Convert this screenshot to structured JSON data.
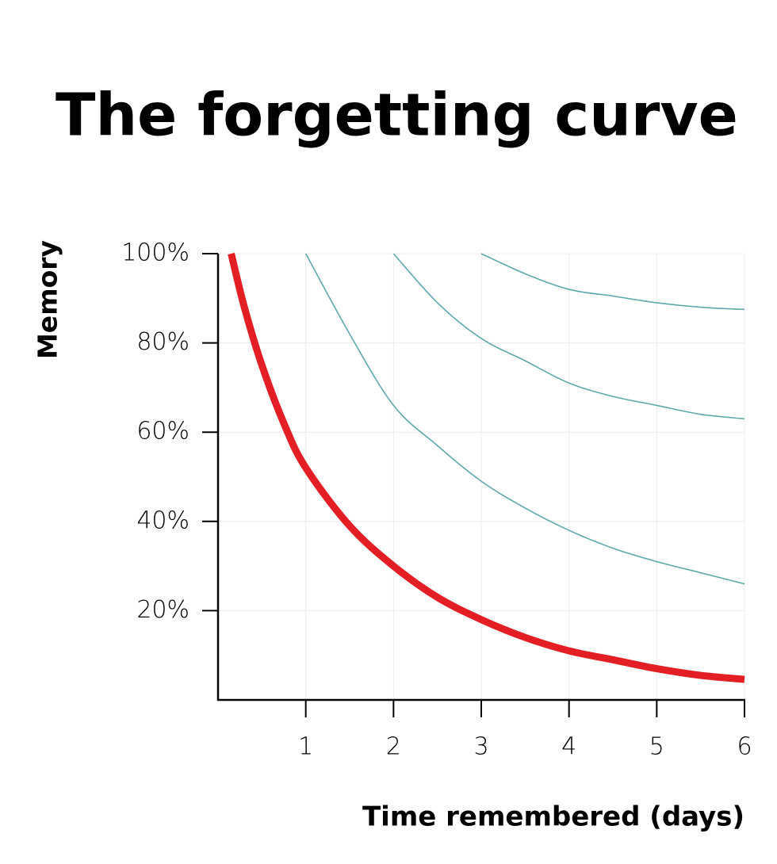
{
  "chart_data": {
    "type": "line",
    "title": "The forgetting curve",
    "x_label": "Time remembered (days)",
    "y_label": "Memory",
    "xlim": [
      0,
      6
    ],
    "ylim": [
      0,
      100
    ],
    "xticks": [
      1,
      2,
      3,
      4,
      5,
      6
    ],
    "yticks": [
      {
        "value": 20,
        "label": "20%"
      },
      {
        "value": 40,
        "label": "40%"
      },
      {
        "value": 60,
        "label": "60%"
      },
      {
        "value": 80,
        "label": "80%"
      },
      {
        "value": 100,
        "label": "100%"
      }
    ],
    "grid": true,
    "series": [
      {
        "color": "#5fa8ab",
        "width": 1.6,
        "x": [
          3,
          3.5,
          4,
          4.5,
          5,
          5.5,
          6
        ],
        "values": [
          100,
          95.5,
          92,
          90.5,
          89,
          88,
          87.5
        ]
      },
      {
        "color": "#5fa8ab",
        "width": 1.6,
        "x": [
          2,
          2.5,
          3,
          3.5,
          4,
          4.5,
          5,
          5.5,
          6
        ],
        "values": [
          100,
          89,
          81,
          76,
          71,
          68,
          66,
          64,
          63
        ]
      },
      {
        "color": "#5fa8ab",
        "width": 1.6,
        "x": [
          1,
          1.5,
          2,
          2.5,
          3,
          3.5,
          4,
          4.5,
          5,
          5.5,
          6
        ],
        "values": [
          100,
          82,
          66,
          57,
          49,
          43,
          38,
          34,
          31,
          28.5,
          26
        ]
      },
      {
        "color": "#e31e24",
        "width": 9,
        "x": [
          0.15,
          0.3,
          0.5,
          0.75,
          1,
          1.5,
          2,
          2.5,
          3,
          3.5,
          4,
          4.5,
          5,
          5.5,
          6
        ],
        "values": [
          100,
          88,
          75,
          62,
          52,
          39,
          30,
          23,
          18,
          14,
          11,
          9,
          7,
          5.5,
          4.6
        ]
      }
    ]
  }
}
